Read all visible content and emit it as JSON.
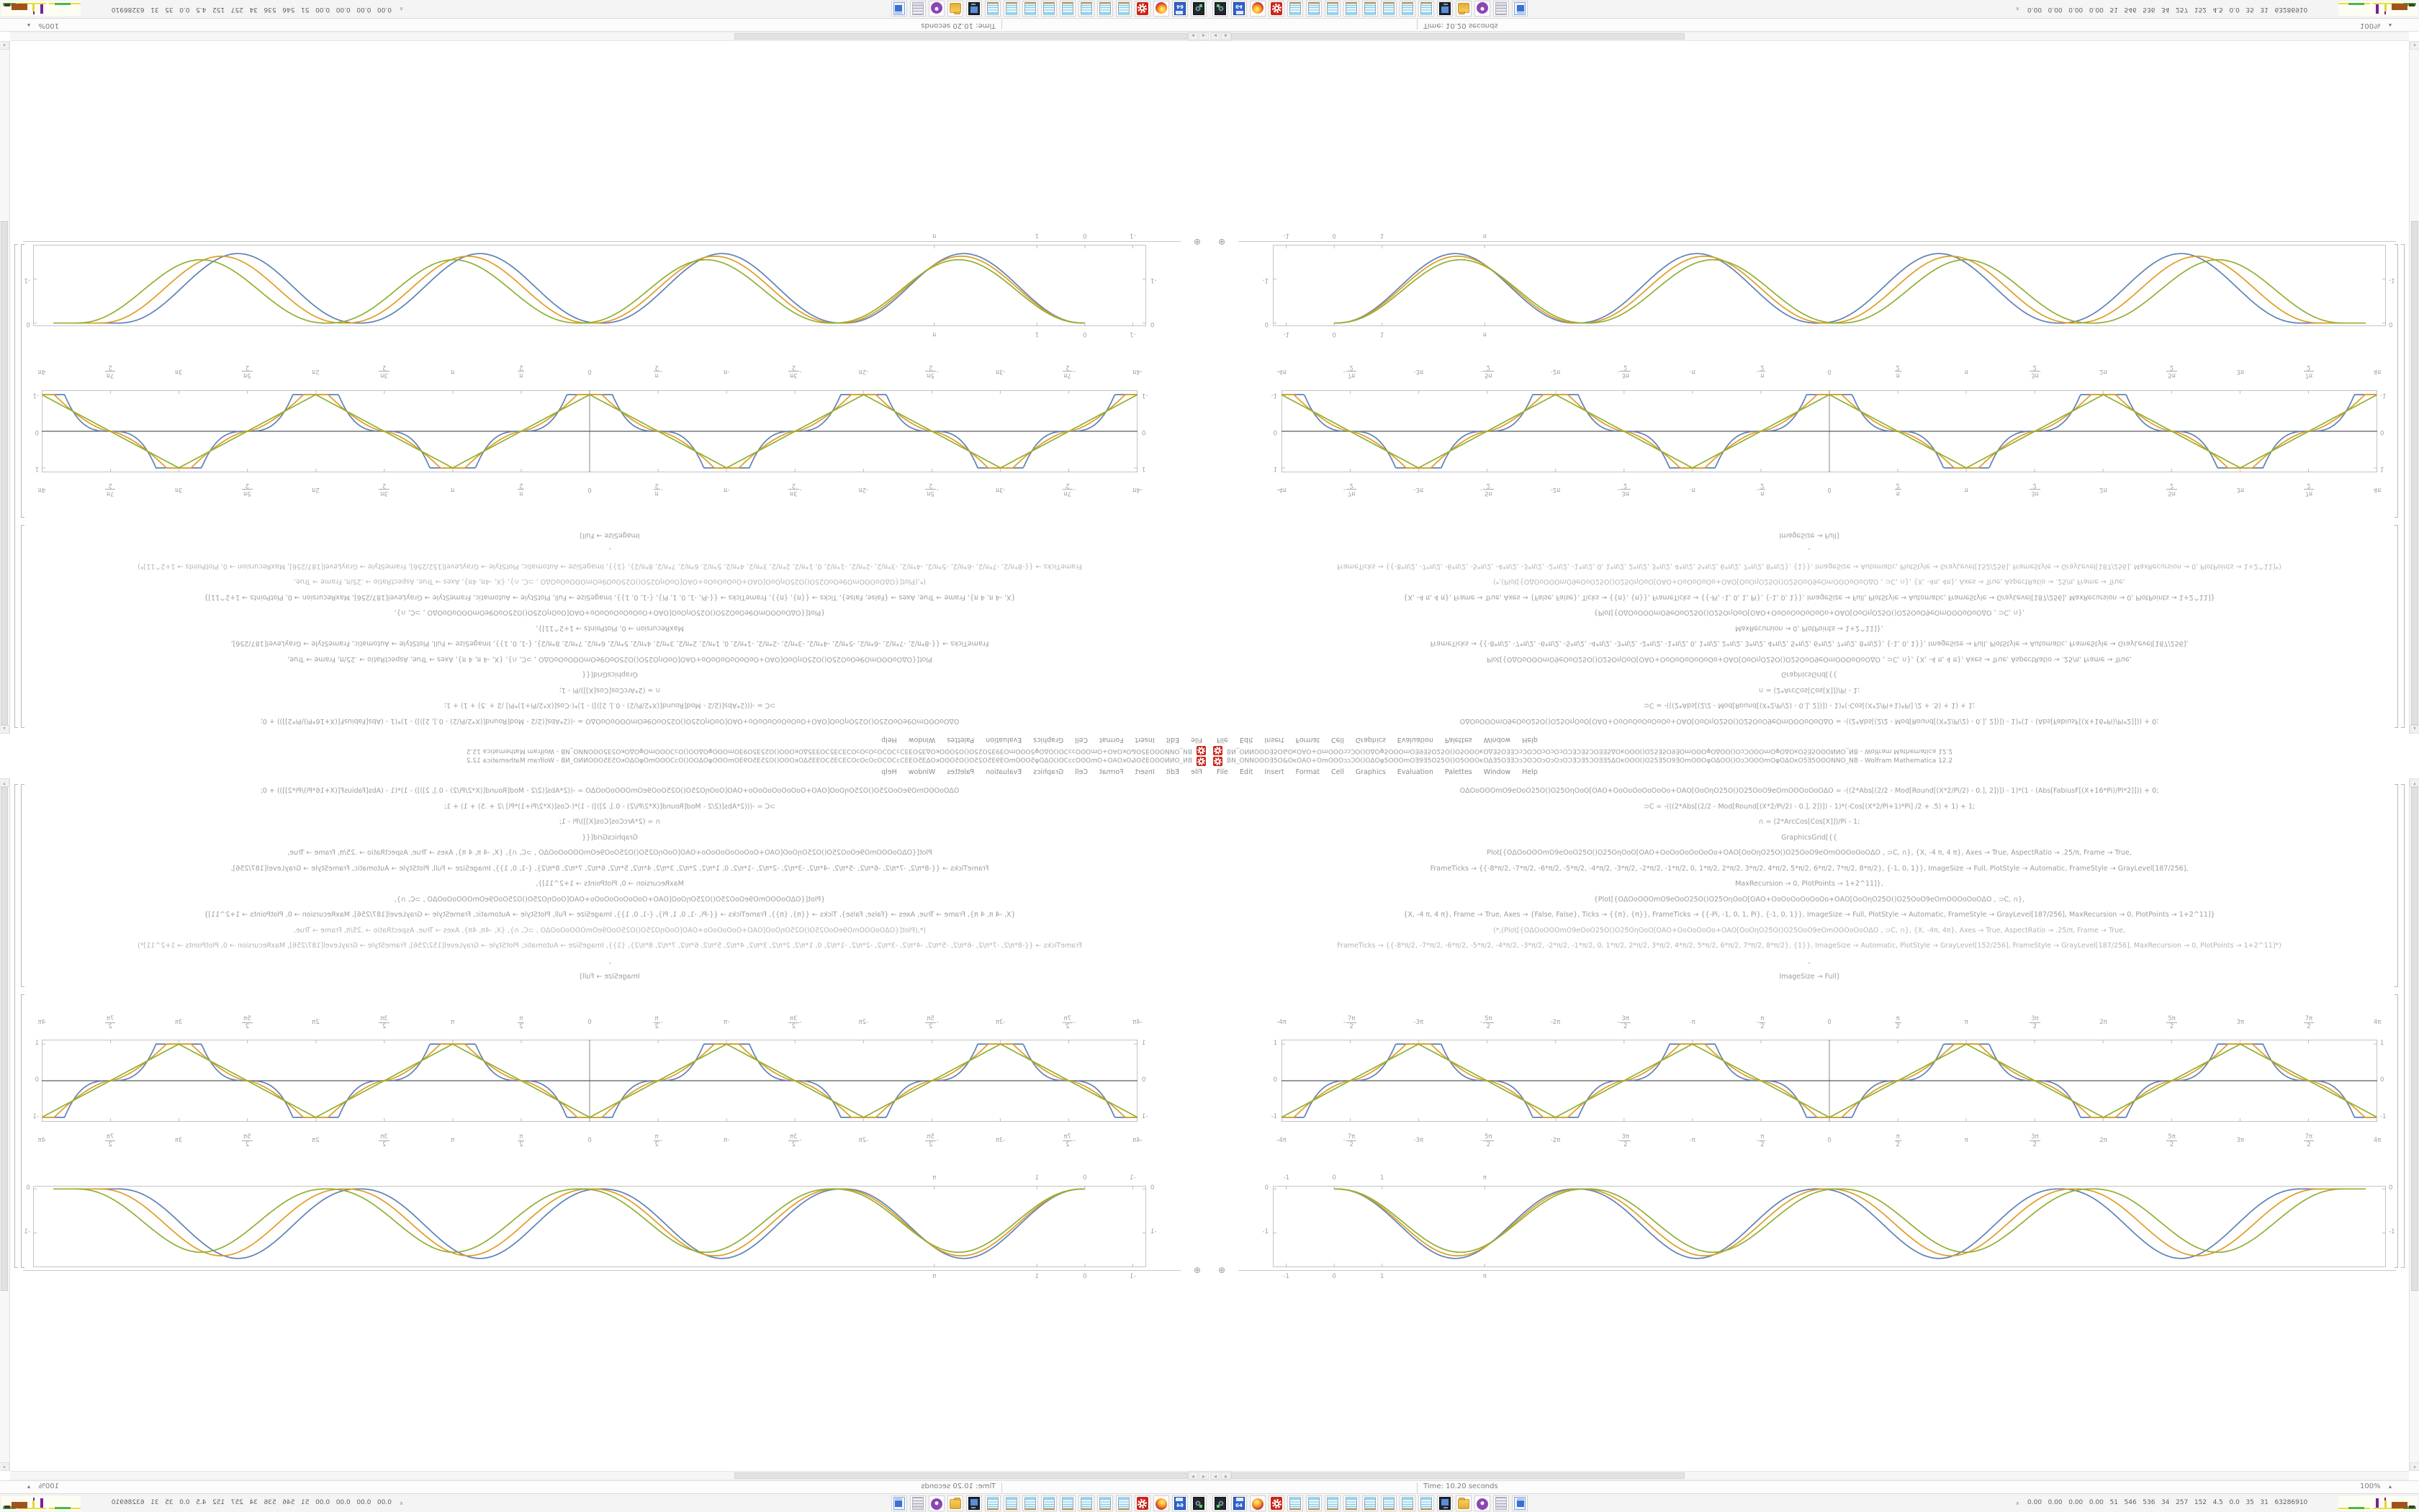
{
  "window": {
    "title": "ΒΝ_ΟΝΝΟʘΟƎ5Ο&ΟκΟΑΟ+ΟmΟʘΟɔɔƆΟ()ΟΔΟφ5ΟʘΟmΟƎ9Ǝ5Ο25Ο()Ο5ΟʘΟκΟΔƎ5ΟƎƎƆɔƆΟƆΟɔΟɔΟɔΟƆƎƆƎ5ƆΟƎƎ5ΔΟκΟʘΟ()Ο25Ǝ5Ο9ƎΟmΟʘΟφΟΔΟΟ()ΟɔƆΟʘΟmΟφΟΔΟκΟ5Ǝ5ΟʘΟΝΝΟ_NB - Wolfram Mathematica 12.2",
    "app_icon": "mathematica-red-spikey",
    "menu": [
      "File",
      "Edit",
      "Insert",
      "Format",
      "Cell",
      "Graphics",
      "Evaluation",
      "Palettes",
      "Window",
      "Help"
    ]
  },
  "status": {
    "time": "Time: 10.20 seconds",
    "zoom": "100%"
  },
  "code": {
    "lines": [
      {
        "text": "ΟΔΟοΟʘΟmΟ9eΟοΟ25Ο()Ο25ΟηΟοΟ[ΟΑΟ+ΟοΟοΟοΟοΟοΟο+ΟΑΟ[ΟοΟηΟ25Ο()Ο25ΟοΟ9eΟmΟʘΟοΟοΟΔΟ  = -((2*Abs[(2/2 - Mod[Round[(X*2/Pi/2) - 0.], 2])]) - 1)*(1 - (Abs[FabiusF[(X+16*Pi)/Pi*2]])) + 0;",
        "comment": false
      },
      {
        "text": "⊃C = -(((2*Abs[(2/2 - Mod[Round[(X*2/Pi/2) - 0.], 2])]) - 1)*(-Cos[(X*2/Pi+1)*Pi] /2 + .5) + 1) + 1;",
        "comment": false
      },
      {
        "text": "∩ = (2*ArcCos[Cos[X]])/Pi  - 1;",
        "comment": false
      },
      {
        "text": "GraphicsGrid[{{",
        "comment": false
      },
      {
        "text": "Plot[{ΟΔΟοΟʘΟmΟ9eΟοΟ25Ο()Ο25ΟηΟοΟ[ΟΑΟ+ΟοΟοΟοΟοΟοΟο+ΟΑΟ[ΟοΟηΟ25Ο()Ο25ΟοΟ9eΟmΟʘΟοΟοΟΔΟ   , ⊃C, ∩}, {X, -4 π, 4 π}, Axes → True, AspectRatio → .25/π, Frame → True,",
        "comment": false
      },
      {
        "text": "FrameTicks → {{-8*π/2, -7*π/2, -6*π/2, -5*π/2, -4*π/2, -3*π/2, -2*π/2, -1*π/2, 0, 1*π/2, 2*π/2, 3*π/2, 4*π/2, 5*π/2, 6*π/2, 7*π/2, 8*π/2}, {-1, 0, 1}}, ImageSize → Full, PlotStyle → Automatic, FrameStyle → GrayLevel[187/256],",
        "comment": false
      },
      {
        "text": "MaxRecursion → 0, PlotPoints → 1+2^11]},",
        "comment": false
      },
      {
        "text": "{Plot[{ΟΔΟοΟʘΟmΟ9eΟοΟ25Ο()Ο25ΟηΟοΟ[ΟΑΟ+ΟοΟοΟοΟοΟοΟο+ΟΑΟ[ΟοΟηΟ25Ο()Ο25ΟοΟ9eΟmΟʘΟοΟοΟΔΟ   , ⊃C, ∩},",
        "comment": false
      },
      {
        "text": "{X, -4 π, 4 π}, Frame → True, Axes → {False, False}, Ticks → {{π}, {π}}, FrameTicks → {{-Pi, -1, 0, 1, Pi}, {-1, 0, 1}}, ImageSize → Full, PlotStyle → Automatic, FrameStyle → GrayLevel[187/256], MaxRecursion → 0, PlotPoints → 1+2^11]}",
        "comment": false
      },
      {
        "text": "(*,(Plot[{ΟΔΟοΟʘΟmΟ9eΟοΟ25Ο()Ο25ΟηΟοΟ[ΟΑΟ+ΟοΟοΟοΟο+ΟΑΟ[ΟοΟηΟ25Ο()Ο25ΟοΟ9eΟmΟʘΟοΟοΟΔΟ  , ⊃C, ∩}, {X, -4π, 4π}, Axes → True, AspectRatio → .25/π, Frame → True,",
        "comment": true
      },
      {
        "text": "FrameTicks → {{-8*π/2, -7*π/2, -6*π/2, -5*π/2, -4*π/2, -3*π/2, -2*π/2, -1*π/2, 0, 1*π/2, 2*π/2, 3*π/2, 4*π/2, 5*π/2, 6*π/2, 7*π/2, 8*π/2}, {1}}, ImageSize → Automatic, PlotStyle → GrayLevel[152/256], FrameStyle → GrayLevel[187/256], MaxRecursion → 0, PlotPoints → 1+2^11]*)",
        "comment": true
      },
      {
        "text": ",",
        "comment": false
      },
      {
        "text": "ImageSize → Full]",
        "comment": false
      }
    ]
  },
  "chart_data": [
    {
      "type": "line",
      "title": "",
      "xlabel": "",
      "ylabel": "",
      "frame": true,
      "grid": false,
      "legend": "none",
      "xlim": [
        -12.566,
        12.566
      ],
      "ylim": [
        -1.12,
        1.12
      ],
      "xticks": [
        {
          "label": "-4π"
        },
        {
          "sign": "-",
          "num": "7π",
          "den": "2"
        },
        {
          "label": "-3π"
        },
        {
          "sign": "-",
          "num": "5π",
          "den": "2"
        },
        {
          "label": "-2π"
        },
        {
          "sign": "-",
          "num": "3π",
          "den": "2"
        },
        {
          "label": "-π"
        },
        {
          "sign": "-",
          "num": "π",
          "den": "2"
        },
        {
          "label": "0"
        },
        {
          "sign": "",
          "num": "π",
          "den": "2"
        },
        {
          "label": "π"
        },
        {
          "sign": "",
          "num": "3π",
          "den": "2"
        },
        {
          "label": "2π"
        },
        {
          "sign": "",
          "num": "5π",
          "den": "2"
        },
        {
          "label": "3π"
        },
        {
          "sign": "",
          "num": "7π",
          "den": "2"
        },
        {
          "label": "4π"
        }
      ],
      "yticks": [
        1,
        0,
        -1
      ],
      "axes_origin_lines": true,
      "series": [
        {
          "name": "fabius-smoothed-square-wave",
          "color": "#5E81B5",
          "period": "2π",
          "extrema": "min -1 at 0, ±2π, ±4π; max +1 at ±π, ±3π",
          "shape": "flat plateaus at ±1 and 0"
        },
        {
          "name": "intermediate-wave",
          "color": "#E19C24",
          "period": "2π",
          "extrema": "same",
          "shape": "rounded"
        },
        {
          "name": "triangle-wave 2ArcCos(Cos X)/π − 1",
          "color": "#8FB032",
          "period": "2π",
          "extrema": "same",
          "shape": "linear triangle"
        }
      ]
    },
    {
      "type": "line",
      "title": "",
      "xlabel": "",
      "ylabel": "",
      "frame": true,
      "grid": false,
      "legend": "none",
      "xlim": [
        -1.28,
        21.95
      ],
      "ylim": [
        -1.78,
        0.07
      ],
      "xticks": [
        {
          "label": "-1",
          "x": -1
        },
        {
          "label": "0",
          "x": 0
        },
        {
          "label": "1",
          "x": 1
        },
        {
          "label": "π",
          "x": 3.14159
        }
      ],
      "yticks": [
        {
          "label": "0",
          "y": 0
        },
        {
          "label": "-1",
          "y": -1
        }
      ],
      "axes_origin_lines": false,
      "series": [
        {
          "name": "hump-series-blue",
          "color": "#5E81B5",
          "dip_period": 5.05,
          "depth": -1.58,
          "dips_at": [
            2.53,
            7.58,
            12.63,
            17.68
          ]
        },
        {
          "name": "hump-series-orange",
          "color": "#E19C24",
          "dip_period": 5.15,
          "depth": -1.52,
          "dips_at": [
            2.58,
            7.73,
            12.88,
            18.03
          ]
        },
        {
          "name": "hump-series-green",
          "color": "#8FB032",
          "dip_period": 5.27,
          "depth": -1.44,
          "dips_at": [
            2.64,
            7.91,
            13.18,
            18.45
          ]
        }
      ]
    }
  ],
  "taskbar": {
    "icons": [
      {
        "name": "screenshot-tool"
      },
      {
        "name": "floppy-64"
      },
      {
        "name": "firefox"
      },
      {
        "name": "mathematica"
      },
      {
        "name": "notepad"
      },
      {
        "name": "notepad"
      },
      {
        "name": "notepad"
      },
      {
        "name": "notepad"
      },
      {
        "name": "notepad"
      },
      {
        "name": "notepad"
      },
      {
        "name": "notepad"
      },
      {
        "name": "notepad"
      },
      {
        "name": "display-settings"
      },
      {
        "name": "file-manager"
      },
      {
        "name": "media-player"
      },
      {
        "name": "document-viewer"
      },
      {
        "name": "text-editor-window"
      }
    ],
    "tray_stats": [
      "0.00",
      "0.00",
      "0.00",
      "0.00",
      "51",
      "546",
      "536",
      "34",
      "257",
      "152",
      "4.5",
      "0.0",
      "35",
      "31",
      "63286910"
    ],
    "monitor_colors": {
      "yellow": "#e8e337",
      "green": "#49b84c",
      "purple": "#7a1fa0",
      "brown": "#a0521a"
    }
  },
  "layout_note": "single 1680x1050 desktop mirrored into 4 quadrants: bottom-right normal, bottom-left flipped horizontally, top-right flipped vertically, top-left rotated 180°"
}
